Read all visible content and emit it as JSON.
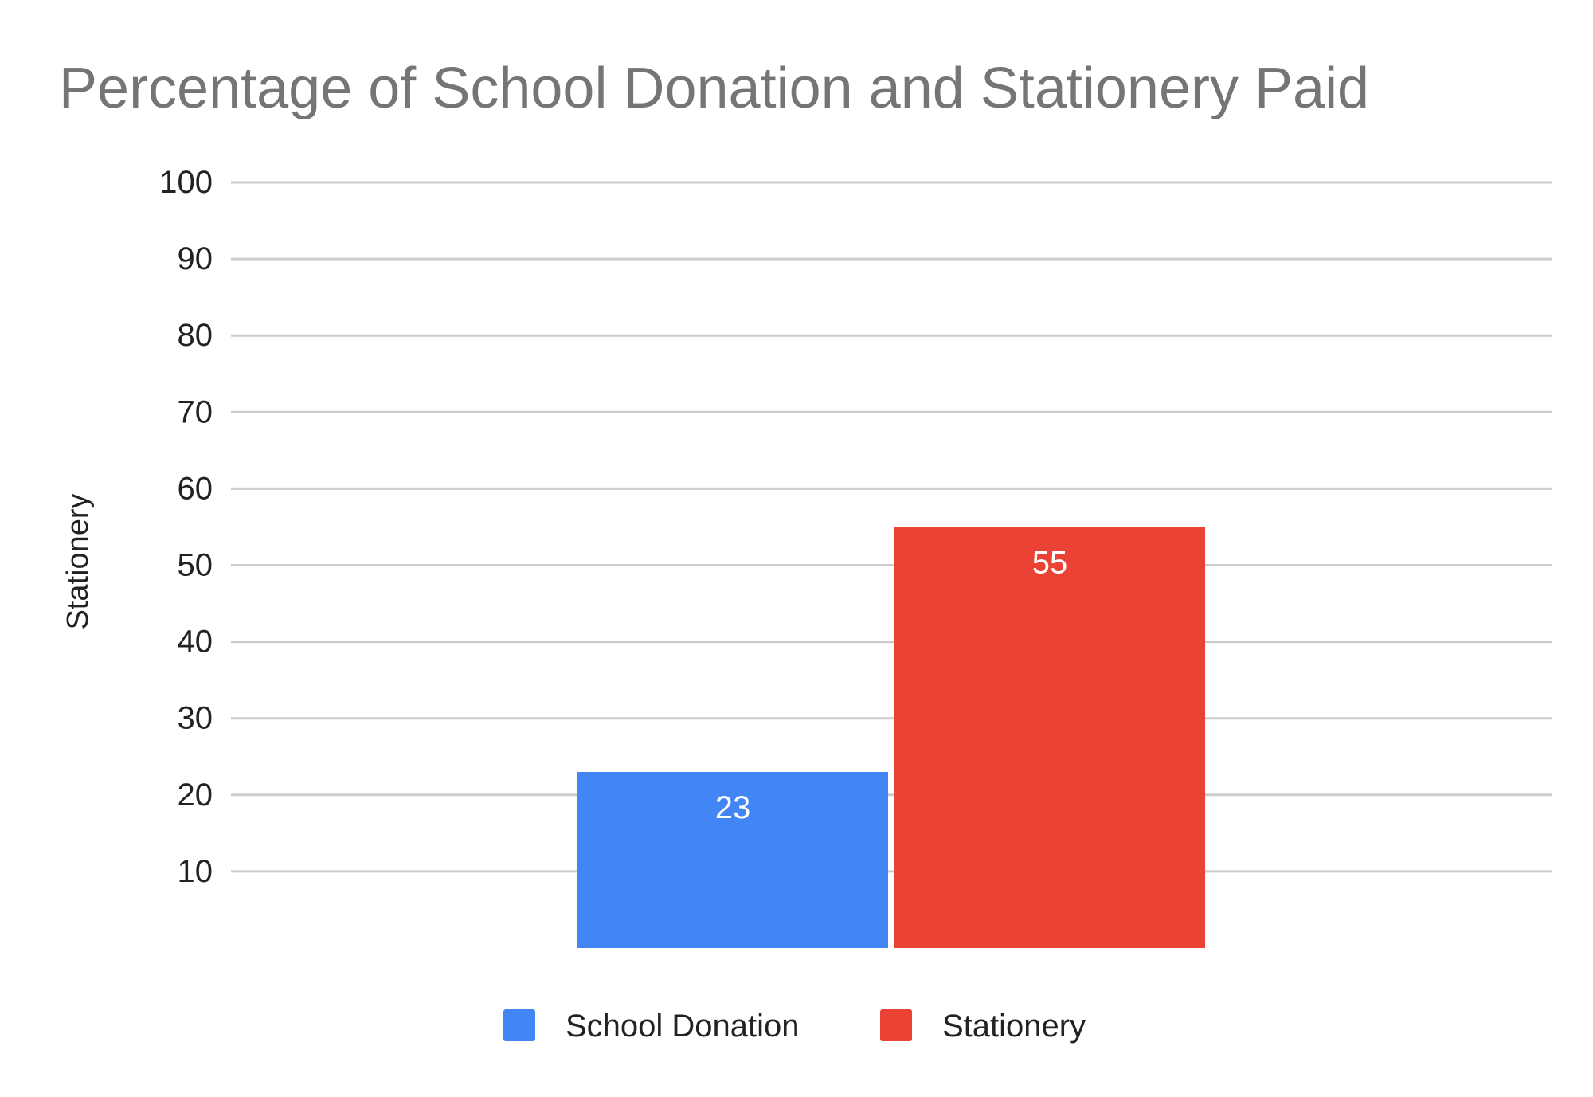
{
  "chart_data": {
    "type": "bar",
    "title": "Percentage of School Donation and Stationery Paid",
    "xlabel": "",
    "ylabel": "Stationery",
    "ylim": [
      0,
      100
    ],
    "yticks": [
      10,
      20,
      30,
      40,
      50,
      60,
      70,
      80,
      90,
      100
    ],
    "grid": true,
    "legend_position": "bottom",
    "categories": [
      ""
    ],
    "series": [
      {
        "name": "School Donation",
        "values": [
          23
        ],
        "color": "#4285F4",
        "data_labels": [
          "23"
        ]
      },
      {
        "name": "Stationery",
        "values": [
          55
        ],
        "color": "#EA4335",
        "data_labels": [
          "55"
        ]
      }
    ]
  },
  "colors": {
    "title": "#757575",
    "axis_text": "#222222",
    "gridline": "#CCCCCC",
    "data_label": "#FFFFFF",
    "background": "#FFFFFF"
  }
}
